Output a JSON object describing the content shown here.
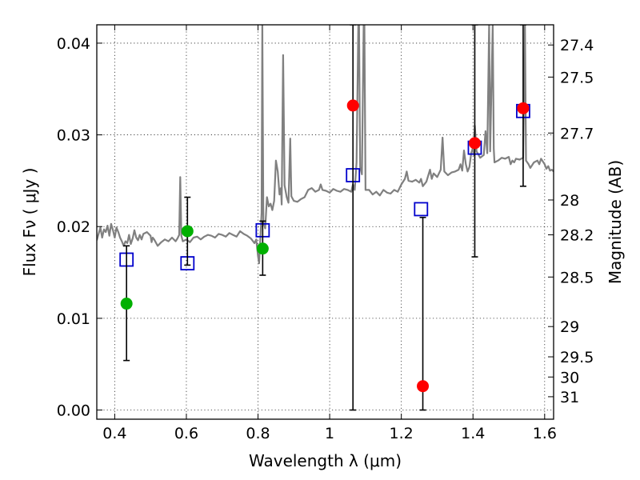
{
  "chart_data": {
    "type": "scatter",
    "title": "",
    "xlabel": "Wavelength  λ (μm)",
    "ylabel": "Flux  Fν  ( μJy )",
    "ylabel_right": "Magnitude (AB)",
    "xlim": [
      0.35,
      1.625
    ],
    "ylim": [
      -0.001,
      0.042
    ],
    "grid": true,
    "x_ticks": [
      0.4,
      0.6,
      0.8,
      1.0,
      1.2,
      1.4,
      1.6
    ],
    "x_tick_labels": [
      "0.4",
      "0.6",
      "0.8",
      "1",
      "1.2",
      "1.4",
      "1.6"
    ],
    "y_ticks": [
      0.0,
      0.01,
      0.02,
      0.03,
      0.04
    ],
    "y_tick_labels": [
      "0.00",
      "0.01",
      "0.02",
      "0.03",
      "0.04"
    ],
    "right_ticks": [
      {
        "flux": 0.0398,
        "label": "27.4"
      },
      {
        "flux": 0.0363,
        "label": "27.5"
      },
      {
        "flux": 0.0302,
        "label": "27.7"
      },
      {
        "flux": 0.0229,
        "label": "28"
      },
      {
        "flux": 0.0191,
        "label": "28.2"
      },
      {
        "flux": 0.0145,
        "label": "28.5"
      },
      {
        "flux": 0.0091,
        "label": "29"
      },
      {
        "flux": 0.0058,
        "label": "29.5"
      },
      {
        "flux": 0.0036,
        "label": "30"
      },
      {
        "flux": 0.00145,
        "label": "31"
      }
    ],
    "series": [
      {
        "kind": "line",
        "color": "#808080",
        "points": [
          [
            0.35,
            0.0185
          ],
          [
            0.355,
            0.0192
          ],
          [
            0.36,
            0.0199
          ],
          [
            0.365,
            0.0188
          ],
          [
            0.37,
            0.0197
          ],
          [
            0.375,
            0.0194
          ],
          [
            0.38,
            0.0201
          ],
          [
            0.385,
            0.019
          ],
          [
            0.39,
            0.0203
          ],
          [
            0.395,
            0.0196
          ],
          [
            0.4,
            0.0188
          ],
          [
            0.405,
            0.0199
          ],
          [
            0.41,
            0.0194
          ],
          [
            0.415,
            0.0188
          ],
          [
            0.42,
            0.0184
          ],
          [
            0.425,
            0.0179
          ],
          [
            0.43,
            0.0184
          ],
          [
            0.435,
            0.0182
          ],
          [
            0.44,
            0.0191
          ],
          [
            0.445,
            0.0181
          ],
          [
            0.45,
            0.0187
          ],
          [
            0.455,
            0.0196
          ],
          [
            0.46,
            0.0188
          ],
          [
            0.465,
            0.0185
          ],
          [
            0.47,
            0.0191
          ],
          [
            0.475,
            0.0186
          ],
          [
            0.48,
            0.0192
          ],
          [
            0.49,
            0.0194
          ],
          [
            0.5,
            0.019
          ],
          [
            0.503,
            0.0183
          ],
          [
            0.506,
            0.0188
          ],
          [
            0.51,
            0.0186
          ],
          [
            0.52,
            0.0179
          ],
          [
            0.53,
            0.0183
          ],
          [
            0.54,
            0.0186
          ],
          [
            0.55,
            0.0184
          ],
          [
            0.56,
            0.0188
          ],
          [
            0.57,
            0.0184
          ],
          [
            0.575,
            0.0187
          ],
          [
            0.58,
            0.0191
          ],
          [
            0.583,
            0.0254
          ],
          [
            0.586,
            0.019
          ],
          [
            0.59,
            0.0184
          ],
          [
            0.6,
            0.0186
          ],
          [
            0.61,
            0.0183
          ],
          [
            0.62,
            0.0188
          ],
          [
            0.63,
            0.0189
          ],
          [
            0.64,
            0.0186
          ],
          [
            0.65,
            0.0189
          ],
          [
            0.66,
            0.0191
          ],
          [
            0.67,
            0.019
          ],
          [
            0.68,
            0.0188
          ],
          [
            0.69,
            0.0192
          ],
          [
            0.7,
            0.0191
          ],
          [
            0.71,
            0.0189
          ],
          [
            0.72,
            0.0193
          ],
          [
            0.73,
            0.0191
          ],
          [
            0.74,
            0.0189
          ],
          [
            0.75,
            0.0195
          ],
          [
            0.76,
            0.0192
          ],
          [
            0.77,
            0.019
          ],
          [
            0.78,
            0.0187
          ],
          [
            0.79,
            0.0182
          ],
          [
            0.795,
            0.0186
          ],
          [
            0.8,
            0.0168
          ],
          [
            0.803,
            0.016
          ],
          [
            0.806,
            0.0183
          ],
          [
            0.81,
            0.0215
          ],
          [
            0.812,
            0.0423
          ],
          [
            0.815,
            0.0205
          ],
          [
            0.82,
            0.0198
          ],
          [
            0.825,
            0.0232
          ],
          [
            0.83,
            0.0222
          ],
          [
            0.835,
            0.0225
          ],
          [
            0.84,
            0.0218
          ],
          [
            0.845,
            0.0228
          ],
          [
            0.85,
            0.0272
          ],
          [
            0.855,
            0.026
          ],
          [
            0.86,
            0.0235
          ],
          [
            0.864,
            0.0242
          ],
          [
            0.866,
            0.0224
          ],
          [
            0.87,
            0.0387
          ],
          [
            0.874,
            0.0245
          ],
          [
            0.88,
            0.0232
          ],
          [
            0.885,
            0.0226
          ],
          [
            0.89,
            0.0296
          ],
          [
            0.893,
            0.0233
          ],
          [
            0.9,
            0.0228
          ],
          [
            0.91,
            0.0227
          ],
          [
            0.92,
            0.023
          ],
          [
            0.93,
            0.0232
          ],
          [
            0.94,
            0.024
          ],
          [
            0.95,
            0.0242
          ],
          [
            0.96,
            0.0238
          ],
          [
            0.97,
            0.024
          ],
          [
            0.975,
            0.0246
          ],
          [
            0.98,
            0.024
          ],
          [
            0.99,
            0.0239
          ],
          [
            1.0,
            0.0237
          ],
          [
            1.01,
            0.0241
          ],
          [
            1.02,
            0.0239
          ],
          [
            1.03,
            0.0238
          ],
          [
            1.04,
            0.0241
          ],
          [
            1.05,
            0.024
          ],
          [
            1.06,
            0.0238
          ],
          [
            1.065,
            0.0246
          ],
          [
            1.07,
            0.024
          ],
          [
            1.075,
            0.027
          ],
          [
            1.08,
            0.042
          ],
          [
            1.082,
            0.042
          ],
          [
            1.085,
            0.0265
          ],
          [
            1.09,
            0.0257
          ],
          [
            1.095,
            0.042
          ],
          [
            1.097,
            0.042
          ],
          [
            1.1,
            0.024
          ],
          [
            1.11,
            0.024
          ],
          [
            1.12,
            0.0235
          ],
          [
            1.13,
            0.0238
          ],
          [
            1.14,
            0.0234
          ],
          [
            1.15,
            0.024
          ],
          [
            1.16,
            0.0237
          ],
          [
            1.17,
            0.0236
          ],
          [
            1.18,
            0.024
          ],
          [
            1.19,
            0.0238
          ],
          [
            1.2,
            0.0246
          ],
          [
            1.21,
            0.0252
          ],
          [
            1.215,
            0.026
          ],
          [
            1.22,
            0.025
          ],
          [
            1.23,
            0.0249
          ],
          [
            1.24,
            0.0251
          ],
          [
            1.25,
            0.0248
          ],
          [
            1.255,
            0.0252
          ],
          [
            1.26,
            0.0244
          ],
          [
            1.27,
            0.0249
          ],
          [
            1.28,
            0.0262
          ],
          [
            1.285,
            0.0252
          ],
          [
            1.29,
            0.0258
          ],
          [
            1.3,
            0.0254
          ],
          [
            1.31,
            0.0262
          ],
          [
            1.315,
            0.0297
          ],
          [
            1.32,
            0.026
          ],
          [
            1.33,
            0.0256
          ],
          [
            1.34,
            0.0259
          ],
          [
            1.35,
            0.026
          ],
          [
            1.36,
            0.0262
          ],
          [
            1.365,
            0.0268
          ],
          [
            1.37,
            0.0261
          ],
          [
            1.375,
            0.0283
          ],
          [
            1.38,
            0.0268
          ],
          [
            1.385,
            0.026
          ],
          [
            1.39,
            0.0265
          ],
          [
            1.395,
            0.028
          ],
          [
            1.4,
            0.0286
          ],
          [
            1.403,
            0.0278
          ],
          [
            1.405,
            0.031
          ],
          [
            1.41,
            0.0282
          ],
          [
            1.42,
            0.0275
          ],
          [
            1.43,
            0.0278
          ],
          [
            1.435,
            0.0304
          ],
          [
            1.44,
            0.028
          ],
          [
            1.445,
            0.042
          ],
          [
            1.448,
            0.0282
          ],
          [
            1.455,
            0.042
          ],
          [
            1.458,
            0.0285
          ],
          [
            1.46,
            0.027
          ],
          [
            1.47,
            0.0272
          ],
          [
            1.48,
            0.0275
          ],
          [
            1.49,
            0.0274
          ],
          [
            1.5,
            0.0276
          ],
          [
            1.505,
            0.0268
          ],
          [
            1.51,
            0.0272
          ],
          [
            1.515,
            0.027
          ],
          [
            1.52,
            0.0274
          ],
          [
            1.53,
            0.0273
          ],
          [
            1.54,
            0.0275
          ],
          [
            1.545,
            0.042
          ],
          [
            1.548,
            0.0272
          ],
          [
            1.555,
            0.0268
          ],
          [
            1.56,
            0.0264
          ],
          [
            1.57,
            0.027
          ],
          [
            1.58,
            0.0272
          ],
          [
            1.585,
            0.0268
          ],
          [
            1.59,
            0.0274
          ],
          [
            1.6,
            0.0268
          ],
          [
            1.605,
            0.0263
          ],
          [
            1.61,
            0.0266
          ],
          [
            1.615,
            0.0261
          ],
          [
            1.62,
            0.0262
          ],
          [
            1.625,
            0.026
          ]
        ]
      },
      {
        "kind": "scatter",
        "marker": "open-square",
        "color": "#0000cc",
        "x": [
          0.433,
          0.603,
          0.813,
          1.065,
          1.255,
          1.405,
          1.54
        ],
        "y": [
          0.0164,
          0.016,
          0.0196,
          0.0256,
          0.0219,
          0.0286,
          0.0326
        ]
      },
      {
        "kind": "scatter",
        "marker": "filled-circle",
        "color": "#00b000",
        "x": [
          0.433,
          0.603,
          0.813
        ],
        "y": [
          0.0116,
          0.0195,
          0.0176
        ]
      },
      {
        "kind": "scatter",
        "marker": "filled-circle",
        "color": "#ff0000",
        "x": [
          1.065,
          1.26,
          1.405,
          1.54
        ],
        "y": [
          0.0332,
          0.0026,
          0.0291,
          0.0329
        ]
      },
      {
        "kind": "errorbar",
        "color": "#000000",
        "bars": [
          {
            "x": 0.433,
            "low": 0.0054,
            "high": 0.0179
          },
          {
            "x": 0.603,
            "low": 0.0158,
            "high": 0.0232
          },
          {
            "x": 0.813,
            "low": 0.0147,
            "high": 0.0206
          },
          {
            "x": 1.065,
            "low": 0.0,
            "high": 0.042
          },
          {
            "x": 1.26,
            "low": 0.0,
            "high": 0.021
          },
          {
            "x": 1.405,
            "low": 0.0167,
            "high": 0.042
          },
          {
            "x": 1.54,
            "low": 0.0244,
            "high": 0.042
          }
        ]
      }
    ]
  }
}
